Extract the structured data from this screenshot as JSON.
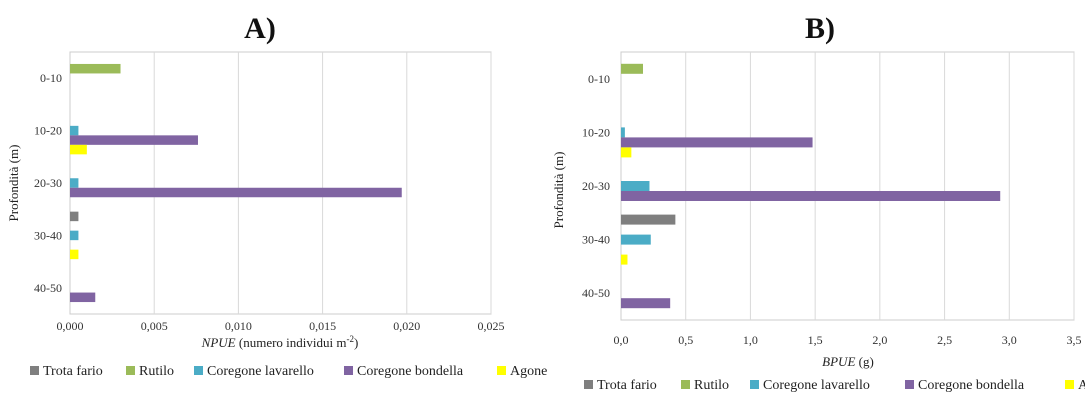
{
  "colors": {
    "Trota fario": "#7f7f7f",
    "Rutilo": "#9bbb59",
    "Coregone lavarello": "#4bacc6",
    "Coregone bondella": "#8064a2",
    "Agone": "#ffff00"
  },
  "chart_data": [
    {
      "type": "bar",
      "orientation": "horizontal",
      "title": "A)",
      "xlabel": "NPUE (numero individui m⁻²)",
      "xlabel_italic": "NPUE",
      "xlabel_rest": " (numero individui m",
      "xlabel_sup": "-2",
      "xlabel_close": ")",
      "ylabel": "Profondità (m)",
      "categories": [
        "0-10",
        "10-20",
        "20-30",
        "30-40",
        "40-50"
      ],
      "xlim": [
        0,
        0.025
      ],
      "xticks": [
        0,
        0.005,
        0.01,
        0.015,
        0.02,
        0.025
      ],
      "xtick_labels": [
        "0,000",
        "0,005",
        "0,010",
        "0,015",
        "0,020",
        "0,025"
      ],
      "grid": true,
      "legend_position": "bottom",
      "series": [
        {
          "name": "Trota fario",
          "values": [
            0,
            0,
            0,
            0.0005,
            0
          ]
        },
        {
          "name": "Rutilo",
          "values": [
            0.003,
            0,
            0,
            0,
            0
          ]
        },
        {
          "name": "Coregone lavarello",
          "values": [
            0,
            0.0005,
            0.0005,
            0.0005,
            0
          ]
        },
        {
          "name": "Coregone bondella",
          "values": [
            0,
            0.0076,
            0.0197,
            0,
            0.0015
          ]
        },
        {
          "name": "Agone",
          "values": [
            0,
            0.001,
            0,
            0.0005,
            0
          ]
        }
      ]
    },
    {
      "type": "bar",
      "orientation": "horizontal",
      "title": "B)",
      "xlabel": "BPUE (g)",
      "xlabel_italic": "BPUE",
      "xlabel_rest": " (g)",
      "ylabel": "Profondità (m)",
      "categories": [
        "0-10",
        "10-20",
        "20-30",
        "30-40",
        "40-50"
      ],
      "xlim": [
        0,
        3.5
      ],
      "xticks": [
        0,
        0.5,
        1,
        1.5,
        2,
        2.5,
        3,
        3.5
      ],
      "xtick_labels": [
        "0,0",
        "0,5",
        "1,0",
        "1,5",
        "2,0",
        "2,5",
        "3,0",
        "3,5"
      ],
      "grid": true,
      "legend_position": "bottom",
      "series": [
        {
          "name": "Trota fario",
          "values": [
            0,
            0,
            0,
            0.42,
            0
          ]
        },
        {
          "name": "Rutilo",
          "values": [
            0.17,
            0,
            0,
            0,
            0
          ]
        },
        {
          "name": "Coregone lavarello",
          "values": [
            0,
            0.03,
            0.22,
            0.23,
            0
          ]
        },
        {
          "name": "Coregone bondella",
          "values": [
            0,
            1.48,
            2.93,
            0,
            0.38
          ]
        },
        {
          "name": "Agone",
          "values": [
            0,
            0.08,
            0,
            0.05,
            0
          ]
        }
      ]
    }
  ]
}
